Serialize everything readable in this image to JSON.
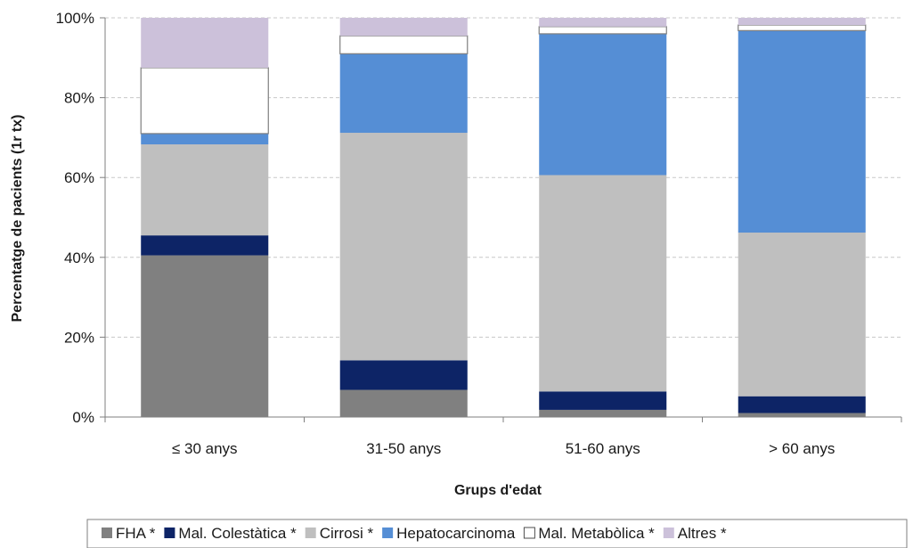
{
  "chart_data": {
    "type": "bar",
    "stacked": true,
    "title": "",
    "xlabel": "Grups d'edat",
    "ylabel": "Percentatge de pacients (1r tx)",
    "ylim": [
      0,
      100
    ],
    "yticks": [
      "0%",
      "20%",
      "40%",
      "60%",
      "80%",
      "100%"
    ],
    "grid": true,
    "legend_position": "bottom",
    "categories": [
      "≤ 30 anys",
      "31-50 anys",
      "51-60 anys",
      "> 60 anys"
    ],
    "series": [
      {
        "name": "FHA *",
        "color": "#808080",
        "values": [
          40.5,
          6.8,
          1.8,
          1.0
        ]
      },
      {
        "name": "Mal. Colestàtica *",
        "color": "#0d2466",
        "values": [
          5.0,
          7.4,
          4.6,
          4.2
        ]
      },
      {
        "name": "Cirrosi *",
        "color": "#bfbfbf",
        "values": [
          22.8,
          57.0,
          54.2,
          41.0
        ]
      },
      {
        "name": "Hepatocarcinoma",
        "color": "#558ed5",
        "values": [
          2.7,
          19.8,
          35.4,
          50.6
        ]
      },
      {
        "name": "Mal. Metabòlica *",
        "color": "#ffffff",
        "values": [
          16.5,
          4.5,
          1.8,
          1.4
        ]
      },
      {
        "name": "Altres *",
        "color": "#ccc1da",
        "values": [
          12.5,
          4.5,
          2.2,
          1.8
        ]
      }
    ]
  }
}
